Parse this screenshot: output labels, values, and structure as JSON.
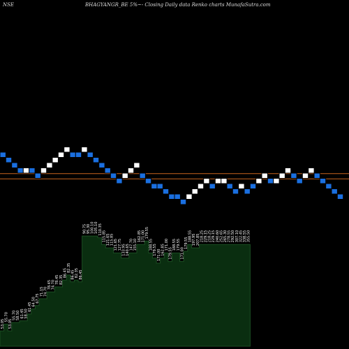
{
  "header": {
    "exchange": "NSE",
    "title": "BHAGYANGR_BE 5%~- Closing Daily data Renko charts MunafaSutra.com"
  },
  "colors": {
    "background": "#000000",
    "up_brick": "#ffffff",
    "down_brick": "#1a6fe0",
    "brick_border": "#000000",
    "reference_line": "#c8641e",
    "volume_area": "#0a2e10",
    "volume_label": "#ffffff"
  },
  "chart_data": [
    {
      "type": "renko",
      "bricks": [
        {
          "dir": "down",
          "level": 0
        },
        {
          "dir": "down",
          "level": -1
        },
        {
          "dir": "down",
          "level": -2
        },
        {
          "dir": "down",
          "level": -3
        },
        {
          "dir": "up",
          "level": -3
        },
        {
          "dir": "down",
          "level": -3
        },
        {
          "dir": "down",
          "level": -4
        },
        {
          "dir": "up",
          "level": -3
        },
        {
          "dir": "up",
          "level": -2
        },
        {
          "dir": "up",
          "level": -1
        },
        {
          "dir": "up",
          "level": 0
        },
        {
          "dir": "up",
          "level": 1
        },
        {
          "dir": "down",
          "level": 0
        },
        {
          "dir": "down",
          "level": 0
        },
        {
          "dir": "up",
          "level": 1
        },
        {
          "dir": "down",
          "level": 0
        },
        {
          "dir": "down",
          "level": -1
        },
        {
          "dir": "down",
          "level": -2
        },
        {
          "dir": "down",
          "level": -3
        },
        {
          "dir": "down",
          "level": -4
        },
        {
          "dir": "down",
          "level": -5
        },
        {
          "dir": "up",
          "level": -4
        },
        {
          "dir": "up",
          "level": -3
        },
        {
          "dir": "up",
          "level": -2
        },
        {
          "dir": "down",
          "level": -4
        },
        {
          "dir": "down",
          "level": -5
        },
        {
          "dir": "down",
          "level": -6
        },
        {
          "dir": "down",
          "level": -6
        },
        {
          "dir": "down",
          "level": -7
        },
        {
          "dir": "down",
          "level": -8
        },
        {
          "dir": "down",
          "level": -8
        },
        {
          "dir": "down",
          "level": -9
        },
        {
          "dir": "up",
          "level": -8
        },
        {
          "dir": "up",
          "level": -7
        },
        {
          "dir": "up",
          "level": -6
        },
        {
          "dir": "up",
          "level": -5
        },
        {
          "dir": "down",
          "level": -6
        },
        {
          "dir": "up",
          "level": -5
        },
        {
          "dir": "up",
          "level": -5
        },
        {
          "dir": "down",
          "level": -6
        },
        {
          "dir": "down",
          "level": -7
        },
        {
          "dir": "up",
          "level": -6
        },
        {
          "dir": "down",
          "level": -7
        },
        {
          "dir": "down",
          "level": -6
        },
        {
          "dir": "up",
          "level": -5
        },
        {
          "dir": "up",
          "level": -4
        },
        {
          "dir": "down",
          "level": -5
        },
        {
          "dir": "up",
          "level": -5
        },
        {
          "dir": "up",
          "level": -4
        },
        {
          "dir": "up",
          "level": -3
        },
        {
          "dir": "down",
          "level": -4
        },
        {
          "dir": "down",
          "level": -5
        },
        {
          "dir": "up",
          "level": -4
        },
        {
          "dir": "up",
          "level": -3
        },
        {
          "dir": "down",
          "level": -4
        },
        {
          "dir": "down",
          "level": -5
        },
        {
          "dir": "down",
          "level": -6
        },
        {
          "dir": "down",
          "level": -7
        },
        {
          "dir": "down",
          "level": -8
        }
      ],
      "reference_lines": [
        -4.1,
        -5.1
      ]
    },
    {
      "type": "area",
      "labels": [
        "53.05",
        "55.70",
        "53.05",
        "55.70",
        "58.50",
        "61.45",
        "58.50",
        "61.45",
        "64.50",
        "67.75",
        "71.15",
        "74.70",
        "78.45",
        "74.70",
        "78.45",
        "82.35",
        "86.45",
        "82.35",
        "86.45",
        "82.35",
        "86.45",
        "90.75",
        "95.30",
        "100.10",
        "105.10",
        "110.35",
        "115.85",
        "121.65",
        "115.85",
        "121.65",
        "127.75",
        "133.95",
        "140.65",
        "147.70",
        "155.10",
        "162.85",
        "171.00",
        "179.55",
        "188.55",
        "179.55",
        "171.00",
        "162.85",
        "171.00",
        "179.55",
        "188.55",
        "179.55",
        "171.00",
        "179.55",
        "188.55",
        "197.95",
        "207.85",
        "218.25",
        "229.15",
        "218.25",
        "229.15",
        "240.60",
        "252.65",
        "265.30",
        "278.55",
        "292.50",
        "307.10",
        "322.45",
        "338.55",
        "355.50"
      ],
      "values": [
        9,
        13,
        9,
        14,
        14,
        15,
        15,
        19,
        22,
        24,
        28,
        28,
        32,
        32,
        35,
        35,
        39,
        42,
        38,
        39,
        38,
        65,
        65,
        65,
        65,
        64,
        60,
        58,
        58,
        55,
        55,
        52,
        52,
        55,
        55,
        60,
        60,
        62,
        55,
        52,
        49,
        52,
        55,
        50,
        55,
        55,
        50,
        56,
        60,
        58,
        58,
        60,
        60,
        60,
        60,
        60,
        60,
        60,
        60,
        60,
        60,
        60,
        60,
        60
      ],
      "ylim": [
        0,
        70
      ]
    }
  ]
}
